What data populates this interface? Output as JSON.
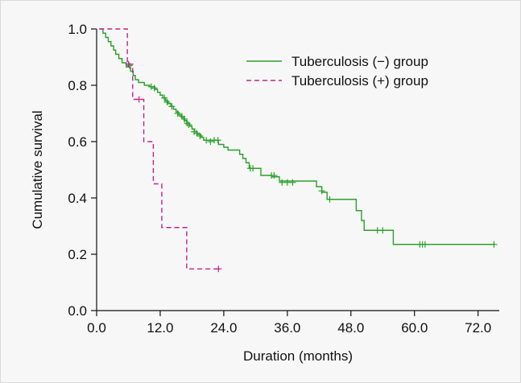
{
  "chart_data": {
    "type": "line",
    "title": "",
    "xlabel": "Duration (months)",
    "ylabel": "Cumulative survival",
    "xlim": [
      0,
      76
    ],
    "ylim": [
      0,
      1.0
    ],
    "x_ticks": [
      0,
      12,
      24,
      36,
      48,
      60,
      72
    ],
    "x_tick_labels": [
      "0.0",
      "12.0",
      "24.0",
      "36.0",
      "48.0",
      "60.0",
      "72.0"
    ],
    "y_ticks": [
      0,
      0.2,
      0.4,
      0.6,
      0.8,
      1.0
    ],
    "y_tick_labels": [
      "0.0",
      "0.2",
      "0.4",
      "0.6",
      "0.8",
      "1.0"
    ],
    "grid": false,
    "legend_position": "top-right",
    "series": [
      {
        "name": "Tuberculosis (−) group",
        "style": "solid",
        "color": "#2ca02c",
        "steps": [
          [
            0.5,
            1.0
          ],
          [
            1.2,
            0.985
          ],
          [
            1.7,
            0.97
          ],
          [
            2.2,
            0.955
          ],
          [
            2.7,
            0.94
          ],
          [
            3.2,
            0.925
          ],
          [
            3.6,
            0.91
          ],
          [
            4.2,
            0.895
          ],
          [
            4.8,
            0.88
          ],
          [
            5.6,
            0.865
          ],
          [
            6.4,
            0.85
          ],
          [
            6.9,
            0.835
          ],
          [
            7.3,
            0.82
          ],
          [
            7.9,
            0.81
          ],
          [
            9.0,
            0.8
          ],
          [
            10.0,
            0.795
          ],
          [
            11.0,
            0.785
          ],
          [
            11.5,
            0.775
          ],
          [
            12.0,
            0.765
          ],
          [
            12.5,
            0.755
          ],
          [
            13.0,
            0.745
          ],
          [
            13.5,
            0.735
          ],
          [
            14.0,
            0.725
          ],
          [
            14.5,
            0.715
          ],
          [
            15.0,
            0.705
          ],
          [
            15.5,
            0.695
          ],
          [
            16.0,
            0.685
          ],
          [
            16.5,
            0.675
          ],
          [
            17.0,
            0.665
          ],
          [
            17.5,
            0.655
          ],
          [
            18.0,
            0.645
          ],
          [
            18.5,
            0.635
          ],
          [
            19.0,
            0.625
          ],
          [
            19.7,
            0.615
          ],
          [
            20.2,
            0.605
          ],
          [
            23.0,
            0.59
          ],
          [
            24.0,
            0.58
          ],
          [
            24.8,
            0.57
          ],
          [
            27.0,
            0.555
          ],
          [
            27.6,
            0.54
          ],
          [
            28.2,
            0.525
          ],
          [
            28.8,
            0.505
          ],
          [
            31.0,
            0.48
          ],
          [
            33.0,
            0.475
          ],
          [
            34.5,
            0.46
          ],
          [
            41.5,
            0.44
          ],
          [
            42.5,
            0.42
          ],
          [
            43.5,
            0.395
          ],
          [
            49.0,
            0.355
          ],
          [
            50.0,
            0.32
          ],
          [
            50.5,
            0.285
          ],
          [
            56.0,
            0.235
          ],
          [
            75.0,
            0.235
          ]
        ],
        "censored": [
          [
            6.2,
            0.87
          ],
          [
            10.3,
            0.795
          ],
          [
            10.9,
            0.79
          ],
          [
            12.8,
            0.755
          ],
          [
            13.3,
            0.74
          ],
          [
            14.2,
            0.725
          ],
          [
            15.3,
            0.7
          ],
          [
            16.1,
            0.69
          ],
          [
            16.6,
            0.68
          ],
          [
            17.1,
            0.665
          ],
          [
            17.4,
            0.66
          ],
          [
            18.4,
            0.635
          ],
          [
            18.9,
            0.63
          ],
          [
            19.5,
            0.62
          ],
          [
            20.7,
            0.605
          ],
          [
            21.5,
            0.6
          ],
          [
            22.2,
            0.605
          ],
          [
            22.9,
            0.605
          ],
          [
            29.0,
            0.505
          ],
          [
            29.5,
            0.505
          ],
          [
            33.0,
            0.48
          ],
          [
            33.5,
            0.48
          ],
          [
            35.0,
            0.455
          ],
          [
            36.0,
            0.455
          ],
          [
            37.0,
            0.455
          ],
          [
            42.5,
            0.425
          ],
          [
            44.0,
            0.395
          ],
          [
            53.0,
            0.285
          ],
          [
            54.0,
            0.285
          ],
          [
            61.0,
            0.235
          ],
          [
            61.5,
            0.235
          ],
          [
            62.0,
            0.235
          ],
          [
            75.0,
            0.235
          ]
        ]
      },
      {
        "name": "Tuberculosis (+) group",
        "style": "dashed",
        "color": "#c2228f",
        "steps": [
          [
            0.5,
            1.0
          ],
          [
            5.8,
            1.0
          ],
          [
            5.8,
            0.875
          ],
          [
            6.8,
            0.875
          ],
          [
            6.8,
            0.75
          ],
          [
            8.9,
            0.75
          ],
          [
            8.9,
            0.6
          ],
          [
            10.7,
            0.6
          ],
          [
            10.7,
            0.45
          ],
          [
            12.3,
            0.45
          ],
          [
            12.3,
            0.295
          ],
          [
            17.0,
            0.295
          ],
          [
            17.0,
            0.148
          ],
          [
            23.0,
            0.148
          ]
        ],
        "censored": [
          [
            6.0,
            0.875
          ],
          [
            8.0,
            0.75
          ],
          [
            23.0,
            0.148
          ]
        ]
      }
    ]
  }
}
